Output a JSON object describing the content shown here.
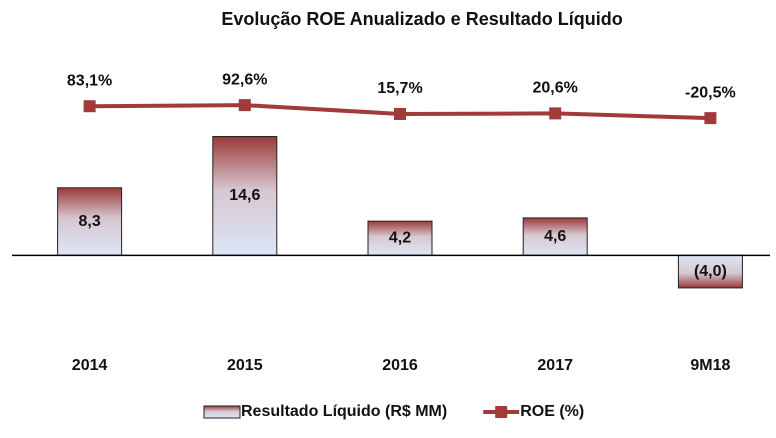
{
  "chart_data": {
    "type": "bar_line",
    "title": "Evolução ROE Anualizado e Resultado Líquido",
    "categories": [
      "2014",
      "2015",
      "2016",
      "2017",
      "9M18"
    ],
    "ylim": [
      -10.4,
      24
    ],
    "y2lim": [
      -1950,
      485
    ],
    "series": [
      {
        "name": "Resultado Líquido (R$ MM)",
        "type": "bar",
        "color": "#9b3a3a",
        "values": [
          8.3,
          14.6,
          4.2,
          4.6,
          -4.0
        ],
        "value_labels": [
          "8,3",
          "14,6",
          "4,2",
          "4,6",
          "(4,0)"
        ]
      },
      {
        "name": "ROE (%)",
        "type": "line",
        "axis": "y2",
        "color": "#a33a3a",
        "values": [
          83.1,
          92.6,
          15.7,
          20.6,
          -20.5
        ],
        "value_labels": [
          "83,1%",
          "92,6%",
          "15,7%",
          "20,6%",
          "-20,5%"
        ]
      }
    ],
    "legend": "bottom"
  }
}
